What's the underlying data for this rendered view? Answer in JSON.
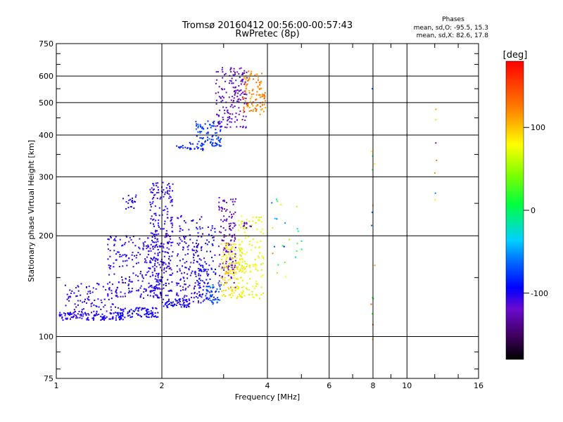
{
  "chart_data": {
    "type": "scatter",
    "title": "Tromsø 20160412 00:56:00-00:57:43",
    "subtitle": "RwPretec (8p)",
    "xlabel": "Frequency [MHz]",
    "ylabel": "Stationary phase Virtual Height [km]",
    "x_scale": "log",
    "y_scale": "log",
    "xlim": [
      1,
      16
    ],
    "ylim": [
      75,
      750
    ],
    "x_ticks": [
      1,
      2,
      4,
      6,
      8,
      10,
      16
    ],
    "y_ticks": [
      75,
      100,
      200,
      300,
      400,
      500,
      600,
      750
    ],
    "grid": true,
    "stats": {
      "heading": "Phases",
      "line_o": "mean, sd,O: -95.5, 15.3",
      "line_x": "mean, sd,X:  82.6, 17.8"
    },
    "colorbar": {
      "label": "[deg]",
      "range": [
        -180,
        180
      ],
      "ticks": [
        -100,
        0,
        100
      ],
      "tick_labels": [
        "-100",
        "0",
        "100"
      ]
    },
    "clusters": [
      {
        "x": [
          1.02,
          1.55
        ],
        "y": [
          112,
          118
        ],
        "n": 120,
        "phase": [
          -110,
          -95
        ]
      },
      {
        "x": [
          1.05,
          1.5
        ],
        "y": [
          118,
          145
        ],
        "n": 90,
        "phase": [
          -115,
          -95
        ]
      },
      {
        "x": [
          1.5,
          1.95
        ],
        "y": [
          114,
          122
        ],
        "n": 90,
        "phase": [
          -105,
          -90
        ]
      },
      {
        "x": [
          1.4,
          2.0
        ],
        "y": [
          130,
          200
        ],
        "n": 220,
        "phase": [
          -115,
          -95
        ]
      },
      {
        "x": [
          1.85,
          2.15
        ],
        "y": [
          130,
          290
        ],
        "n": 260,
        "phase": [
          -115,
          -95
        ]
      },
      {
        "x": [
          2.0,
          2.4
        ],
        "y": [
          122,
          130
        ],
        "n": 60,
        "phase": [
          -105,
          -90
        ]
      },
      {
        "x": [
          2.2,
          2.6
        ],
        "y": [
          125,
          230
        ],
        "n": 150,
        "phase": [
          -115,
          -95
        ]
      },
      {
        "x": [
          2.5,
          2.85
        ],
        "y": [
          125,
          215
        ],
        "n": 110,
        "phase": [
          -110,
          -85
        ]
      },
      {
        "x": [
          2.65,
          2.95
        ],
        "y": [
          125,
          145
        ],
        "n": 40,
        "phase": [
          -85,
          -60
        ]
      },
      {
        "x": [
          1.55,
          1.7
        ],
        "y": [
          240,
          270
        ],
        "n": 20,
        "phase": [
          -110,
          -95
        ]
      },
      {
        "x": [
          2.9,
          3.25
        ],
        "y": [
          140,
          260
        ],
        "n": 140,
        "phase": [
          -135,
          -115
        ]
      },
      {
        "x": [
          2.95,
          3.4
        ],
        "y": [
          130,
          190
        ],
        "n": 140,
        "phase": [
          80,
          100
        ]
      },
      {
        "x": [
          3.3,
          3.9
        ],
        "y": [
          130,
          230
        ],
        "n": 130,
        "phase": [
          60,
          90
        ]
      },
      {
        "x": [
          3.4,
          3.6
        ],
        "y": [
          210,
          220
        ],
        "n": 10,
        "phase": [
          -140,
          -120
        ]
      },
      {
        "x": [
          2.2,
          2.65
        ],
        "y": [
          360,
          380
        ],
        "n": 30,
        "phase": [
          -95,
          -80
        ]
      },
      {
        "x": [
          2.5,
          2.95
        ],
        "y": [
          370,
          440
        ],
        "n": 90,
        "phase": [
          -90,
          -65
        ]
      },
      {
        "x": [
          2.85,
          3.5
        ],
        "y": [
          420,
          640
        ],
        "n": 170,
        "phase": [
          -135,
          -110
        ]
      },
      {
        "x": [
          3.4,
          3.95
        ],
        "y": [
          460,
          620
        ],
        "n": 110,
        "phase": [
          100,
          145
        ]
      },
      {
        "x": [
          4.1,
          5.2
        ],
        "y": [
          150,
          260
        ],
        "n": 25,
        "phase": [
          -120,
          140
        ]
      },
      {
        "x": [
          7.9,
          8.1
        ],
        "y": [
          90,
          640
        ],
        "n": 15,
        "phase": [
          -100,
          150
        ]
      },
      {
        "x": [
          12.0,
          12.2
        ],
        "y": [
          230,
          480
        ],
        "n": 7,
        "phase": [
          -130,
          170
        ]
      }
    ]
  }
}
